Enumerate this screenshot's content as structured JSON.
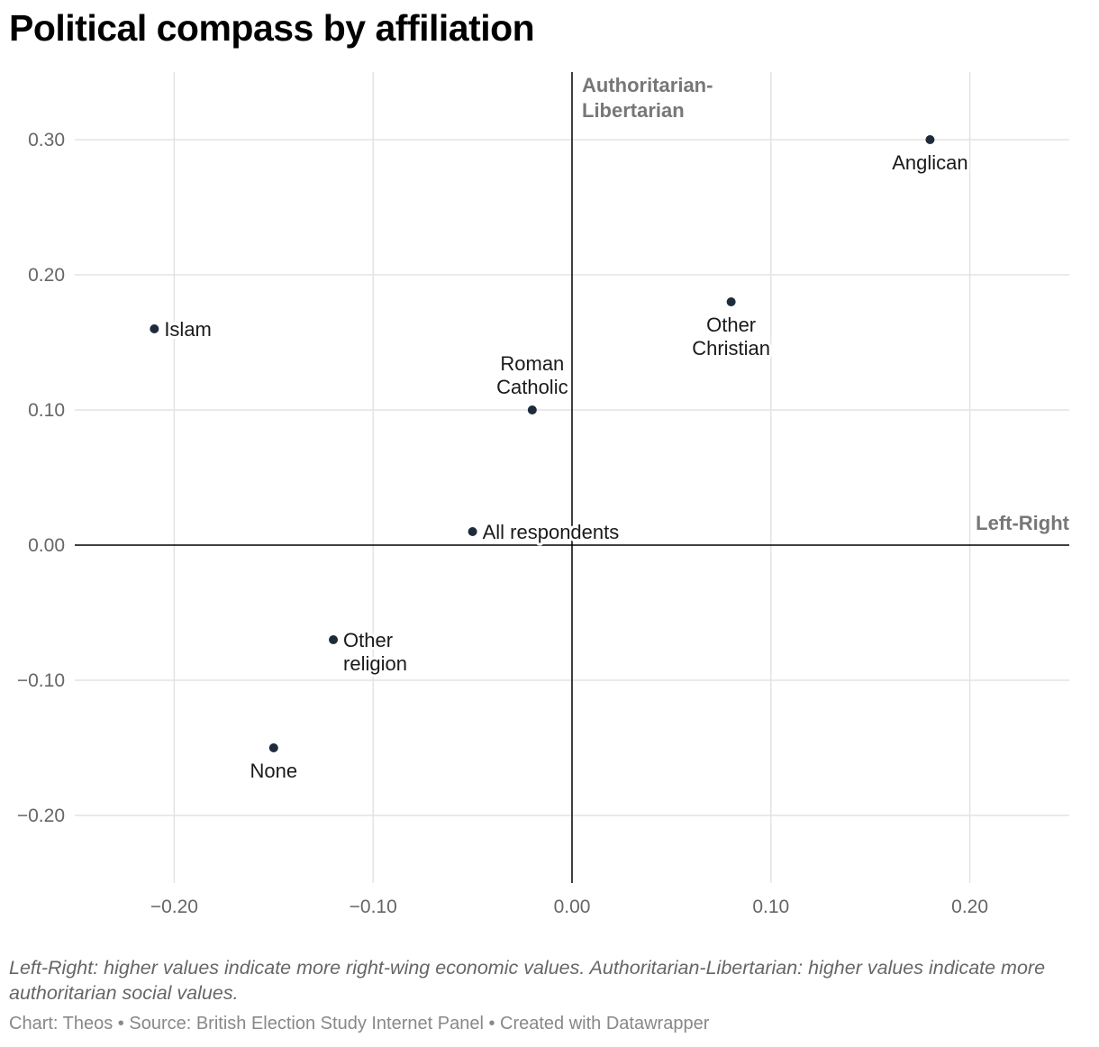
{
  "chart_data": {
    "type": "scatter",
    "title": "Political compass by affiliation",
    "xlabel": "Left-Right",
    "ylabel": "Authoritarian-Libertarian",
    "xlim": [
      -0.25,
      0.25
    ],
    "ylim": [
      -0.25,
      0.35
    ],
    "x_ticks": [
      -0.2,
      -0.1,
      0.0,
      0.1,
      0.2
    ],
    "x_tick_labels": [
      "−0.20",
      "−0.10",
      "0.00",
      "0.10",
      "0.20"
    ],
    "y_ticks": [
      0.3,
      0.2,
      0.1,
      0.0,
      -0.1,
      -0.2
    ],
    "y_tick_labels": [
      "0.30",
      "0.20",
      "0.10",
      "0.00",
      "−0.10",
      "−0.20"
    ],
    "grid": true,
    "point_color": "#1d2b3a",
    "points": [
      {
        "label": "Anglican",
        "lines": [
          "Anglican"
        ],
        "x": 0.18,
        "y": 0.3
      },
      {
        "label": "Other Christian",
        "lines": [
          "Other",
          "Christian"
        ],
        "x": 0.08,
        "y": 0.18
      },
      {
        "label": "Islam",
        "lines": [
          "Islam"
        ],
        "x": -0.21,
        "y": 0.16
      },
      {
        "label": "Roman Catholic",
        "lines": [
          "Roman",
          "Catholic"
        ],
        "x": -0.02,
        "y": 0.1
      },
      {
        "label": "All respondents",
        "lines": [
          "All respondents"
        ],
        "x": -0.05,
        "y": 0.01
      },
      {
        "label": "Other religion",
        "lines": [
          "Other",
          "religion"
        ],
        "x": -0.12,
        "y": -0.07
      },
      {
        "label": "None",
        "lines": [
          "None"
        ],
        "x": -0.15,
        "y": -0.15
      }
    ],
    "y_axis_title_lines": [
      "Authoritarian-",
      "Libertarian"
    ]
  },
  "note": "Left-Right: higher values indicate more right-wing economic values. Authoritarian-Libertarian: higher values indicate more authoritarian social values.",
  "credits": "Chart: Theos • Source: British Election Study Internet Panel • Created with Datawrapper"
}
